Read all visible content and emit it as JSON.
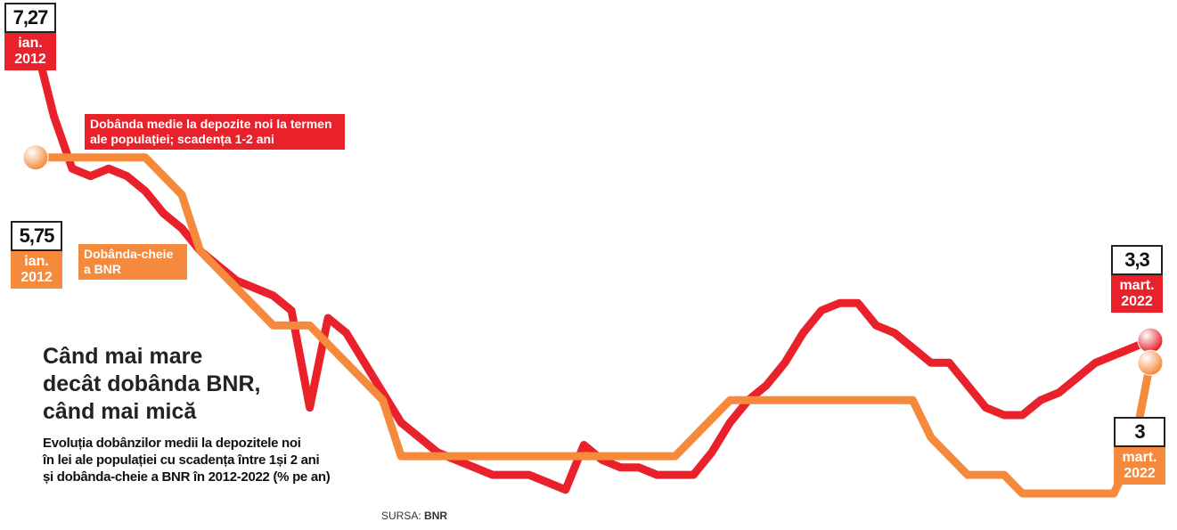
{
  "chart_data": {
    "type": "line",
    "title_lines": [
      "Când mai mare",
      "decât dobânda BNR,",
      "când mai mică"
    ],
    "subtitle_lines": [
      "Evoluția dobânzilor medii la depozitele noi",
      "în lei ale populației cu scadența între 1și 2 ani",
      "și dobânda-cheie a BNR în 2012-2022 (% pe an)"
    ],
    "source": {
      "label": "SURSA:",
      "name": "BNR"
    },
    "categories": [
      "ian. 2012",
      null,
      null,
      null,
      null,
      null,
      null,
      null,
      null,
      null,
      null,
      null,
      null,
      null,
      null,
      null,
      null,
      null,
      null,
      null,
      null,
      null,
      null,
      null,
      null,
      null,
      null,
      null,
      null,
      null,
      null,
      null,
      null,
      null,
      null,
      null,
      null,
      null,
      null,
      null,
      null,
      null,
      null,
      null,
      null,
      null,
      null,
      null,
      null,
      null,
      null,
      null,
      null,
      null,
      null,
      null,
      null,
      null,
      null,
      null,
      null,
      "mart. 2022"
    ],
    "ylim": [
      1,
      7.5
    ],
    "series": [
      {
        "name": "Dobânda medie la depozite noi la termen ale populației; scadența 1-2 ani",
        "color": "#e8212b",
        "values": [
          7.27,
          6.3,
          5.6,
          5.5,
          5.6,
          5.5,
          5.3,
          5.0,
          4.8,
          4.5,
          4.3,
          4.1,
          4.0,
          3.9,
          3.7,
          2.4,
          3.6,
          3.4,
          3.0,
          2.6,
          2.2,
          2.0,
          1.8,
          1.7,
          1.6,
          1.5,
          1.5,
          1.5,
          1.4,
          1.3,
          1.9,
          1.7,
          1.6,
          1.6,
          1.5,
          1.5,
          1.5,
          1.8,
          2.2,
          2.5,
          2.7,
          3.0,
          3.4,
          3.7,
          3.8,
          3.8,
          3.5,
          3.4,
          3.2,
          3.0,
          3.0,
          2.7,
          2.4,
          2.3,
          2.3,
          2.5,
          2.6,
          2.8,
          3.0,
          3.1,
          3.2,
          3.3
        ],
        "value_labels": [
          "7,27",
          null,
          null,
          null,
          null,
          null,
          null,
          null,
          null,
          null,
          null,
          null,
          null,
          null,
          null,
          null,
          null,
          null,
          null,
          null,
          null,
          null,
          null,
          null,
          null,
          null,
          null,
          null,
          null,
          null,
          null,
          null,
          null,
          null,
          null,
          null,
          null,
          null,
          null,
          null,
          null,
          null,
          null,
          null,
          null,
          null,
          null,
          null,
          null,
          null,
          null,
          null,
          null,
          null,
          null,
          null,
          null,
          null,
          null,
          null,
          null,
          "3,3"
        ]
      },
      {
        "name": "Dobânda-cheie a BNR",
        "color": "#f58a3c",
        "values": [
          5.75,
          5.75,
          5.75,
          5.75,
          5.75,
          5.75,
          5.75,
          5.5,
          5.25,
          4.5,
          4.25,
          4.0,
          3.75,
          3.5,
          3.5,
          3.5,
          3.25,
          3.0,
          2.75,
          2.5,
          1.75,
          1.75,
          1.75,
          1.75,
          1.75,
          1.75,
          1.75,
          1.75,
          1.75,
          1.75,
          1.75,
          1.75,
          1.75,
          1.75,
          1.75,
          1.75,
          2.0,
          2.25,
          2.5,
          2.5,
          2.5,
          2.5,
          2.5,
          2.5,
          2.5,
          2.5,
          2.5,
          2.5,
          2.5,
          2.0,
          1.75,
          1.5,
          1.5,
          1.5,
          1.25,
          1.25,
          1.25,
          1.25,
          1.25,
          1.25,
          1.75,
          3.0
        ],
        "value_labels": [
          "5,75",
          null,
          null,
          null,
          null,
          null,
          null,
          null,
          null,
          null,
          null,
          null,
          null,
          null,
          null,
          null,
          null,
          null,
          null,
          null,
          null,
          null,
          null,
          null,
          null,
          null,
          null,
          null,
          null,
          null,
          null,
          null,
          null,
          null,
          null,
          null,
          null,
          null,
          null,
          null,
          null,
          null,
          null,
          null,
          null,
          null,
          null,
          null,
          null,
          null,
          null,
          null,
          null,
          null,
          null,
          null,
          null,
          null,
          null,
          null,
          null,
          "3"
        ]
      }
    ]
  }
}
